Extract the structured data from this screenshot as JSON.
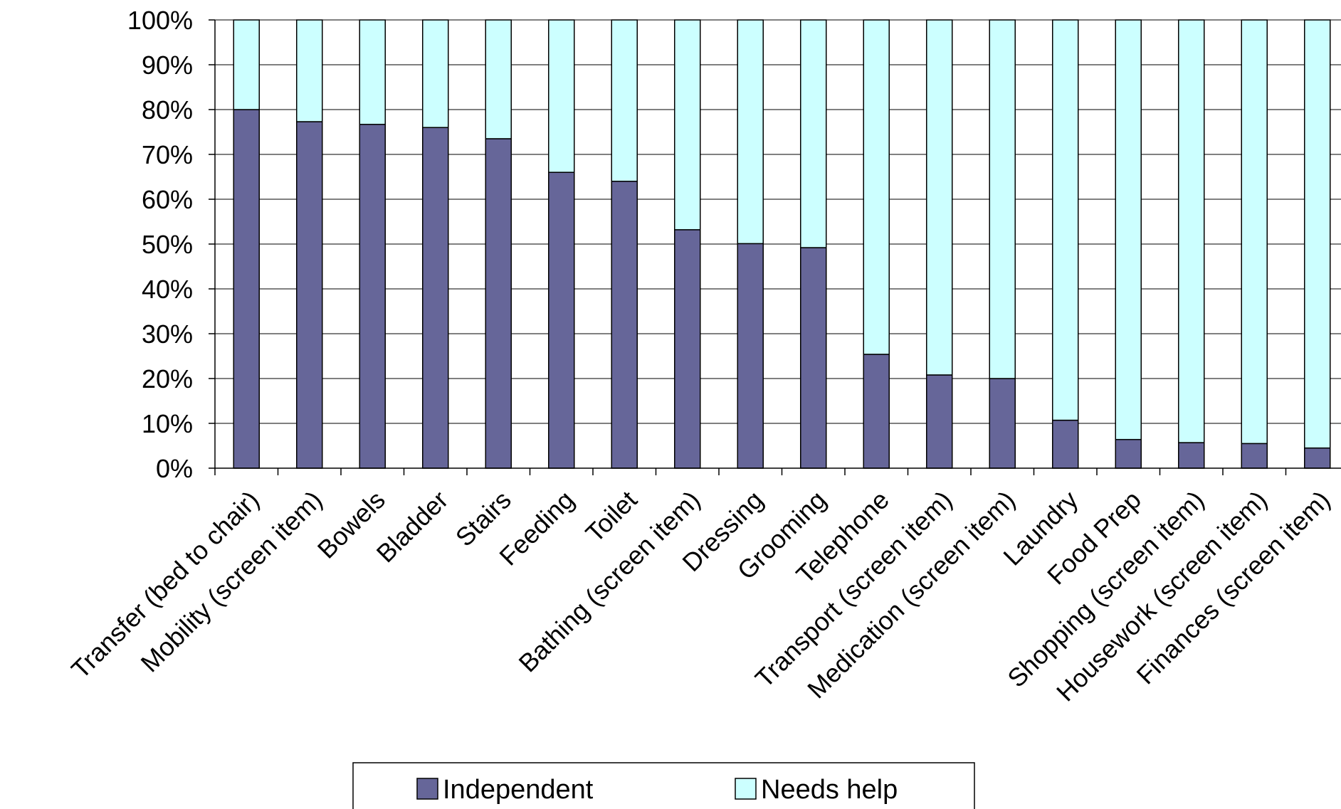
{
  "chart_data": {
    "type": "bar",
    "stacked": true,
    "percent_stacked": true,
    "categories": [
      "Transfer (bed to chair)",
      "Mobility (screen item)",
      "Bowels",
      "Bladder",
      "Stairs",
      "Feeding",
      "Toilet",
      "Bathing (screen item)",
      "Dressing",
      "Grooming",
      "Telephone",
      "Transport (screen item)",
      "Medication (screen item)",
      "Laundry",
      "Food Prep",
      "Shopping (screen item)",
      "Housework (screen item)",
      "Finances (screen item)"
    ],
    "series": [
      {
        "name": "Independent",
        "color": "#666699",
        "values": [
          80,
          77.3,
          76.7,
          76,
          73.5,
          66,
          64,
          53.2,
          50.1,
          49.2,
          25.4,
          20.8,
          20,
          10.7,
          6.4,
          5.7,
          5.5,
          4.5
        ]
      },
      {
        "name": "Needs help",
        "color": "#ccffff",
        "values": [
          20,
          22.7,
          23.3,
          24,
          26.5,
          34,
          36,
          46.8,
          49.9,
          50.8,
          74.6,
          79.2,
          80,
          89.3,
          93.6,
          94.3,
          94.5,
          95.5
        ]
      }
    ],
    "ylim": [
      0,
      100
    ],
    "yticks": [
      "0%",
      "10%",
      "20%",
      "30%",
      "40%",
      "50%",
      "60%",
      "70%",
      "80%",
      "90%",
      "100%"
    ],
    "grid": true,
    "legend_position": "bottom",
    "title": "",
    "xlabel": "",
    "ylabel": ""
  },
  "legend": {
    "items": [
      "Independent",
      "Needs help"
    ]
  }
}
